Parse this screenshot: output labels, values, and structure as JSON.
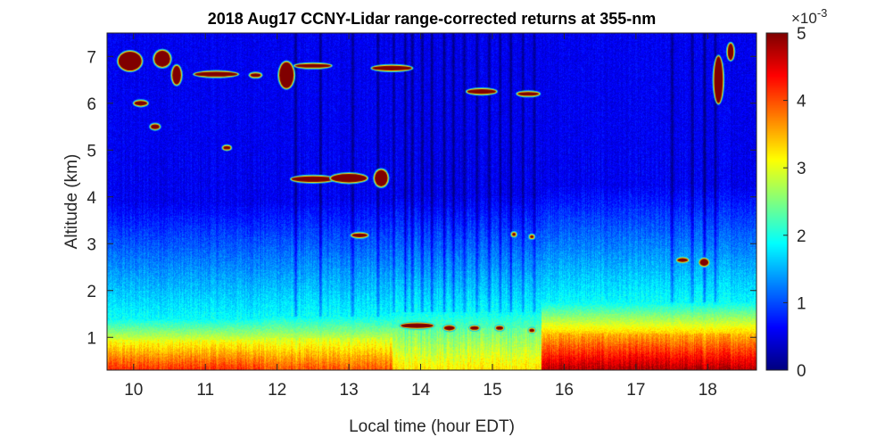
{
  "chart_data": {
    "type": "heatmap",
    "title": "2018 Aug17 CCNY-Lidar range-corrected returns at 355-nm",
    "xlabel": "Local time (hour EDT)",
    "ylabel": "Altitude (km)",
    "xlim": [
      9.63,
      18.68
    ],
    "ylim": [
      0.3,
      7.5
    ],
    "xticks": [
      "10",
      "11",
      "12",
      "13",
      "14",
      "15",
      "16",
      "17",
      "18"
    ],
    "yticks": [
      "1",
      "2",
      "3",
      "4",
      "5",
      "6",
      "7"
    ],
    "colorbar": {
      "min": 0,
      "max": 5,
      "ticks": [
        "0",
        "1",
        "2",
        "3",
        "4",
        "5"
      ],
      "exponent_prefix": "×10",
      "exponent": "-3",
      "colormap": "jet"
    },
    "features": {
      "boundary_layer": [
        {
          "t0": 9.63,
          "t1": 11.8,
          "top_km": 1.4,
          "core_top_km": 0.95,
          "peak": 4.2
        },
        {
          "t0": 11.8,
          "t1": 13.6,
          "top_km": 1.45,
          "core_top_km": 1.0,
          "peak": 4.0
        },
        {
          "t0": 13.6,
          "t1": 15.68,
          "top_km": 1.55,
          "core_top_km": 1.2,
          "peak": 3.3
        },
        {
          "t0": 15.68,
          "t1": 18.68,
          "top_km": 1.75,
          "core_top_km": 1.1,
          "peak": 4.8
        }
      ],
      "clouds": [
        {
          "t": 9.95,
          "z": 6.9,
          "w": 0.32,
          "h": 0.4
        },
        {
          "t": 10.4,
          "z": 6.95,
          "w": 0.22,
          "h": 0.35
        },
        {
          "t": 10.6,
          "z": 6.6,
          "w": 0.12,
          "h": 0.4
        },
        {
          "t": 11.15,
          "z": 6.62,
          "w": 0.6,
          "h": 0.1
        },
        {
          "t": 11.7,
          "z": 6.6,
          "w": 0.15,
          "h": 0.08
        },
        {
          "t": 12.13,
          "z": 6.6,
          "w": 0.2,
          "h": 0.55
        },
        {
          "t": 12.5,
          "z": 6.8,
          "w": 0.5,
          "h": 0.08
        },
        {
          "t": 13.6,
          "z": 6.75,
          "w": 0.55,
          "h": 0.1
        },
        {
          "t": 10.1,
          "z": 6.0,
          "w": 0.18,
          "h": 0.1
        },
        {
          "t": 10.3,
          "z": 5.5,
          "w": 0.12,
          "h": 0.1
        },
        {
          "t": 11.3,
          "z": 5.05,
          "w": 0.1,
          "h": 0.07
        },
        {
          "t": 14.85,
          "z": 6.25,
          "w": 0.4,
          "h": 0.1
        },
        {
          "t": 15.5,
          "z": 6.2,
          "w": 0.3,
          "h": 0.08
        },
        {
          "t": 12.5,
          "z": 4.38,
          "w": 0.6,
          "h": 0.12
        },
        {
          "t": 13.0,
          "z": 4.4,
          "w": 0.5,
          "h": 0.18
        },
        {
          "t": 13.45,
          "z": 4.4,
          "w": 0.18,
          "h": 0.35
        },
        {
          "t": 13.15,
          "z": 3.18,
          "w": 0.22,
          "h": 0.08
        },
        {
          "t": 15.3,
          "z": 3.2,
          "w": 0.05,
          "h": 0.07
        },
        {
          "t": 15.55,
          "z": 3.15,
          "w": 0.05,
          "h": 0.06
        },
        {
          "t": 13.95,
          "z": 1.25,
          "w": 0.45,
          "h": 0.1
        },
        {
          "t": 14.4,
          "z": 1.2,
          "w": 0.15,
          "h": 0.1
        },
        {
          "t": 14.75,
          "z": 1.2,
          "w": 0.12,
          "h": 0.08
        },
        {
          "t": 15.1,
          "z": 1.2,
          "w": 0.1,
          "h": 0.08
        },
        {
          "t": 15.55,
          "z": 1.15,
          "w": 0.07,
          "h": 0.07
        },
        {
          "t": 17.65,
          "z": 2.65,
          "w": 0.15,
          "h": 0.08
        },
        {
          "t": 17.95,
          "z": 2.6,
          "w": 0.12,
          "h": 0.15
        },
        {
          "t": 18.15,
          "z": 6.5,
          "w": 0.12,
          "h": 1.0
        },
        {
          "t": 18.32,
          "z": 7.1,
          "w": 0.08,
          "h": 0.35
        }
      ],
      "dark_streaks": [
        12.25,
        12.6,
        13.05,
        13.4,
        13.62,
        13.78,
        13.88,
        14.02,
        14.15,
        14.32,
        14.45,
        14.6,
        14.78,
        14.95,
        15.1,
        15.25,
        15.42,
        15.58,
        17.5,
        17.78,
        17.95,
        18.1
      ]
    }
  }
}
